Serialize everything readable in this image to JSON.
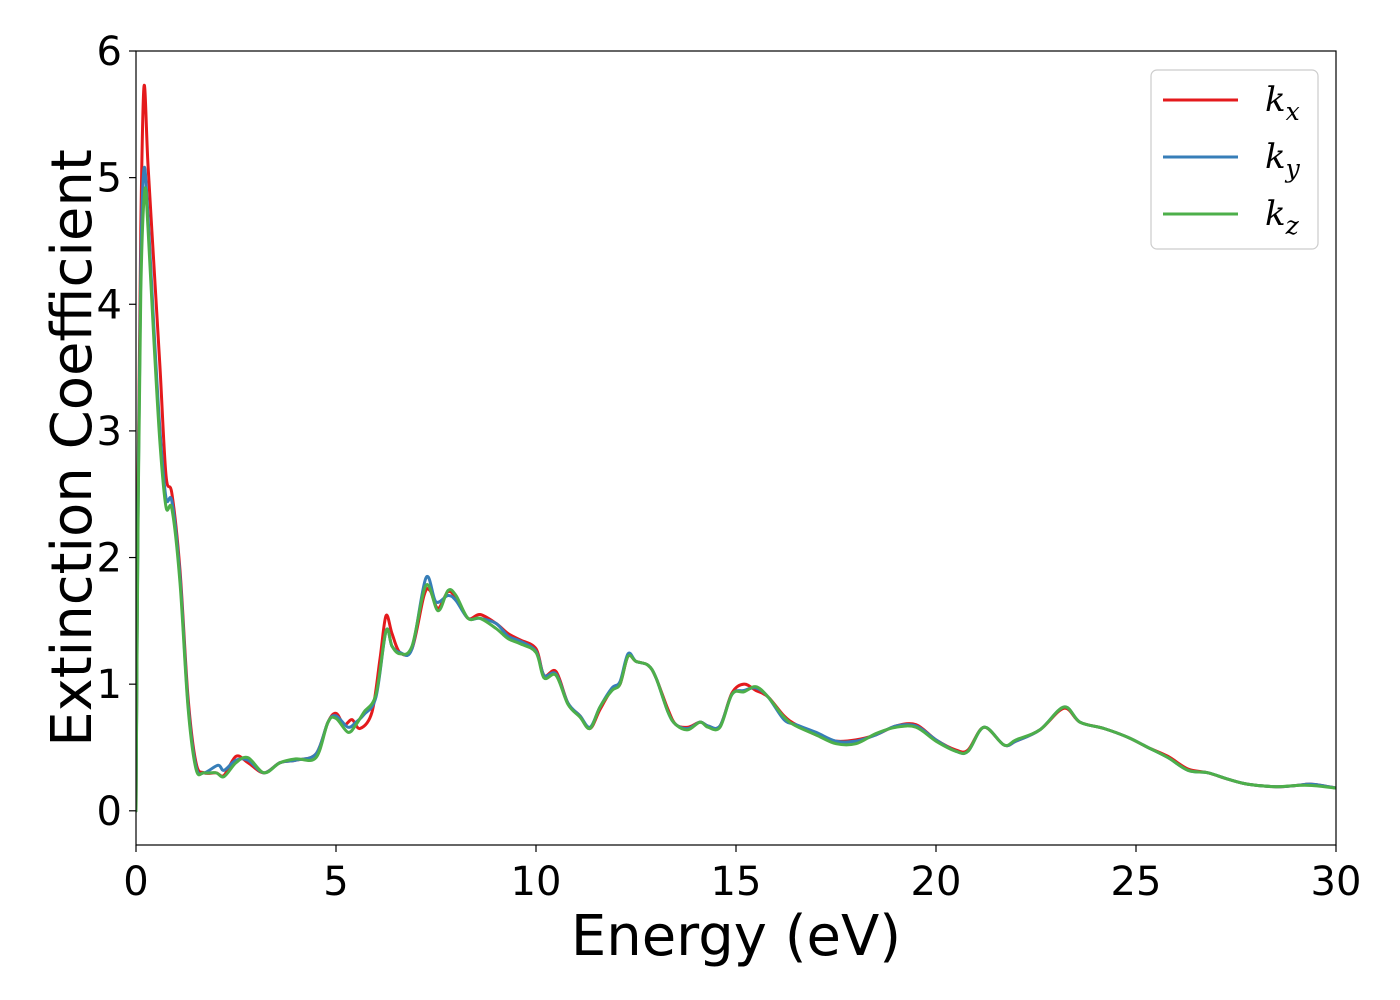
{
  "chart_data": {
    "type": "line",
    "title": "",
    "xlabel": "Energy (eV)",
    "ylabel": "Extinction Coefficient",
    "xlim": [
      0,
      30
    ],
    "ylim": [
      -0.27,
      6.0
    ],
    "xticks": [
      0,
      5,
      10,
      15,
      20,
      25,
      30
    ],
    "yticks": [
      0,
      1,
      2,
      3,
      4,
      5,
      6
    ],
    "grid": false,
    "legend_position": "top-right",
    "series": [
      {
        "name": "k",
        "subscript": "x",
        "color": "#e41a1c",
        "points": [
          [
            0,
            0
          ],
          [
            0.05,
            2.5
          ],
          [
            0.12,
            4.6
          ],
          [
            0.2,
            5.72
          ],
          [
            0.3,
            5.1
          ],
          [
            0.45,
            4.3
          ],
          [
            0.6,
            3.5
          ],
          [
            0.75,
            2.65
          ],
          [
            0.9,
            2.5
          ],
          [
            1.1,
            1.9
          ],
          [
            1.3,
            0.9
          ],
          [
            1.5,
            0.38
          ],
          [
            1.7,
            0.3
          ],
          [
            2.0,
            0.3
          ],
          [
            2.2,
            0.28
          ],
          [
            2.5,
            0.43
          ],
          [
            2.8,
            0.38
          ],
          [
            3.2,
            0.3
          ],
          [
            3.6,
            0.38
          ],
          [
            4.0,
            0.4
          ],
          [
            4.5,
            0.45
          ],
          [
            4.8,
            0.7
          ],
          [
            5.0,
            0.77
          ],
          [
            5.2,
            0.68
          ],
          [
            5.4,
            0.72
          ],
          [
            5.6,
            0.65
          ],
          [
            5.9,
            0.78
          ],
          [
            6.1,
            1.2
          ],
          [
            6.25,
            1.54
          ],
          [
            6.4,
            1.4
          ],
          [
            6.6,
            1.25
          ],
          [
            6.9,
            1.28
          ],
          [
            7.2,
            1.7
          ],
          [
            7.35,
            1.74
          ],
          [
            7.55,
            1.6
          ],
          [
            7.8,
            1.73
          ],
          [
            8.0,
            1.68
          ],
          [
            8.3,
            1.52
          ],
          [
            8.6,
            1.55
          ],
          [
            9.0,
            1.48
          ],
          [
            9.3,
            1.4
          ],
          [
            9.6,
            1.35
          ],
          [
            10.0,
            1.28
          ],
          [
            10.2,
            1.07
          ],
          [
            10.5,
            1.1
          ],
          [
            10.8,
            0.85
          ],
          [
            11.1,
            0.75
          ],
          [
            11.35,
            0.65
          ],
          [
            11.6,
            0.8
          ],
          [
            11.9,
            0.96
          ],
          [
            12.1,
            1.0
          ],
          [
            12.3,
            1.22
          ],
          [
            12.5,
            1.18
          ],
          [
            12.8,
            1.15
          ],
          [
            13.0,
            1.05
          ],
          [
            13.3,
            0.8
          ],
          [
            13.5,
            0.68
          ],
          [
            13.8,
            0.66
          ],
          [
            14.1,
            0.7
          ],
          [
            14.3,
            0.67
          ],
          [
            14.6,
            0.67
          ],
          [
            14.9,
            0.93
          ],
          [
            15.2,
            1.0
          ],
          [
            15.5,
            0.95
          ],
          [
            15.8,
            0.9
          ],
          [
            16.2,
            0.75
          ],
          [
            16.5,
            0.68
          ],
          [
            17.0,
            0.6
          ],
          [
            17.5,
            0.55
          ],
          [
            18.0,
            0.56
          ],
          [
            18.5,
            0.6
          ],
          [
            19.0,
            0.67
          ],
          [
            19.5,
            0.68
          ],
          [
            20.0,
            0.56
          ],
          [
            20.5,
            0.48
          ],
          [
            20.8,
            0.48
          ],
          [
            21.2,
            0.66
          ],
          [
            21.7,
            0.52
          ],
          [
            22.0,
            0.55
          ],
          [
            22.6,
            0.64
          ],
          [
            23.2,
            0.81
          ],
          [
            23.6,
            0.7
          ],
          [
            24.2,
            0.65
          ],
          [
            24.8,
            0.58
          ],
          [
            25.3,
            0.5
          ],
          [
            25.8,
            0.43
          ],
          [
            26.3,
            0.33
          ],
          [
            26.8,
            0.3
          ],
          [
            27.3,
            0.25
          ],
          [
            27.8,
            0.21
          ],
          [
            28.5,
            0.19
          ],
          [
            29.0,
            0.2
          ],
          [
            29.4,
            0.21
          ],
          [
            30.0,
            0.18
          ]
        ]
      },
      {
        "name": "k",
        "subscript": "y",
        "color": "#377eb8",
        "points": [
          [
            0,
            0
          ],
          [
            0.05,
            2.3
          ],
          [
            0.12,
            4.3
          ],
          [
            0.2,
            5.07
          ],
          [
            0.3,
            4.7
          ],
          [
            0.45,
            3.8
          ],
          [
            0.6,
            3.0
          ],
          [
            0.75,
            2.47
          ],
          [
            0.9,
            2.44
          ],
          [
            1.1,
            1.85
          ],
          [
            1.3,
            0.85
          ],
          [
            1.5,
            0.35
          ],
          [
            1.7,
            0.3
          ],
          [
            2.05,
            0.36
          ],
          [
            2.2,
            0.32
          ],
          [
            2.5,
            0.4
          ],
          [
            2.8,
            0.4
          ],
          [
            3.2,
            0.3
          ],
          [
            3.6,
            0.38
          ],
          [
            4.0,
            0.4
          ],
          [
            4.5,
            0.45
          ],
          [
            4.8,
            0.7
          ],
          [
            5.0,
            0.75
          ],
          [
            5.3,
            0.66
          ],
          [
            5.5,
            0.7
          ],
          [
            5.7,
            0.76
          ],
          [
            6.0,
            0.9
          ],
          [
            6.25,
            1.42
          ],
          [
            6.4,
            1.3
          ],
          [
            6.6,
            1.25
          ],
          [
            6.9,
            1.28
          ],
          [
            7.25,
            1.84
          ],
          [
            7.5,
            1.65
          ],
          [
            7.8,
            1.7
          ],
          [
            8.0,
            1.66
          ],
          [
            8.3,
            1.52
          ],
          [
            8.6,
            1.52
          ],
          [
            9.0,
            1.48
          ],
          [
            9.3,
            1.38
          ],
          [
            9.6,
            1.34
          ],
          [
            10.0,
            1.26
          ],
          [
            10.2,
            1.07
          ],
          [
            10.5,
            1.08
          ],
          [
            10.8,
            0.85
          ],
          [
            11.1,
            0.75
          ],
          [
            11.35,
            0.66
          ],
          [
            11.6,
            0.82
          ],
          [
            11.9,
            0.97
          ],
          [
            12.1,
            1.02
          ],
          [
            12.3,
            1.24
          ],
          [
            12.5,
            1.18
          ],
          [
            12.8,
            1.15
          ],
          [
            13.0,
            1.05
          ],
          [
            13.3,
            0.78
          ],
          [
            13.5,
            0.68
          ],
          [
            13.8,
            0.65
          ],
          [
            14.1,
            0.7
          ],
          [
            14.3,
            0.67
          ],
          [
            14.6,
            0.67
          ],
          [
            14.9,
            0.92
          ],
          [
            15.2,
            0.95
          ],
          [
            15.5,
            0.97
          ],
          [
            15.8,
            0.9
          ],
          [
            16.2,
            0.72
          ],
          [
            16.5,
            0.68
          ],
          [
            17.0,
            0.62
          ],
          [
            17.5,
            0.55
          ],
          [
            18.0,
            0.55
          ],
          [
            18.5,
            0.6
          ],
          [
            19.0,
            0.67
          ],
          [
            19.5,
            0.67
          ],
          [
            20.0,
            0.56
          ],
          [
            20.5,
            0.47
          ],
          [
            20.8,
            0.47
          ],
          [
            21.2,
            0.66
          ],
          [
            21.7,
            0.52
          ],
          [
            22.0,
            0.55
          ],
          [
            22.6,
            0.64
          ],
          [
            23.2,
            0.82
          ],
          [
            23.6,
            0.7
          ],
          [
            24.2,
            0.65
          ],
          [
            24.8,
            0.58
          ],
          [
            25.3,
            0.5
          ],
          [
            25.8,
            0.42
          ],
          [
            26.3,
            0.32
          ],
          [
            26.8,
            0.3
          ],
          [
            27.3,
            0.25
          ],
          [
            27.8,
            0.21
          ],
          [
            28.5,
            0.19
          ],
          [
            29.0,
            0.2
          ],
          [
            29.4,
            0.21
          ],
          [
            30.0,
            0.18
          ]
        ]
      },
      {
        "name": "k",
        "subscript": "z",
        "color": "#4daf4a",
        "points": [
          [
            0,
            0
          ],
          [
            0.05,
            2.2
          ],
          [
            0.12,
            4.1
          ],
          [
            0.22,
            4.9
          ],
          [
            0.3,
            4.6
          ],
          [
            0.45,
            3.7
          ],
          [
            0.6,
            2.9
          ],
          [
            0.75,
            2.4
          ],
          [
            0.9,
            2.38
          ],
          [
            1.1,
            1.8
          ],
          [
            1.3,
            0.82
          ],
          [
            1.5,
            0.33
          ],
          [
            1.7,
            0.3
          ],
          [
            2.0,
            0.3
          ],
          [
            2.2,
            0.27
          ],
          [
            2.5,
            0.38
          ],
          [
            2.8,
            0.42
          ],
          [
            3.2,
            0.3
          ],
          [
            3.6,
            0.38
          ],
          [
            4.0,
            0.41
          ],
          [
            4.5,
            0.42
          ],
          [
            4.8,
            0.7
          ],
          [
            5.0,
            0.73
          ],
          [
            5.3,
            0.62
          ],
          [
            5.5,
            0.68
          ],
          [
            5.7,
            0.78
          ],
          [
            6.0,
            0.92
          ],
          [
            6.25,
            1.42
          ],
          [
            6.4,
            1.3
          ],
          [
            6.6,
            1.24
          ],
          [
            6.9,
            1.3
          ],
          [
            7.25,
            1.78
          ],
          [
            7.55,
            1.58
          ],
          [
            7.8,
            1.74
          ],
          [
            8.0,
            1.7
          ],
          [
            8.3,
            1.52
          ],
          [
            8.6,
            1.52
          ],
          [
            9.0,
            1.44
          ],
          [
            9.3,
            1.36
          ],
          [
            9.6,
            1.32
          ],
          [
            10.0,
            1.25
          ],
          [
            10.2,
            1.05
          ],
          [
            10.5,
            1.07
          ],
          [
            10.8,
            0.84
          ],
          [
            11.1,
            0.74
          ],
          [
            11.35,
            0.65
          ],
          [
            11.6,
            0.82
          ],
          [
            11.9,
            0.95
          ],
          [
            12.1,
            1.0
          ],
          [
            12.3,
            1.22
          ],
          [
            12.5,
            1.18
          ],
          [
            12.8,
            1.15
          ],
          [
            13.0,
            1.05
          ],
          [
            13.3,
            0.78
          ],
          [
            13.5,
            0.68
          ],
          [
            13.8,
            0.64
          ],
          [
            14.1,
            0.7
          ],
          [
            14.3,
            0.66
          ],
          [
            14.6,
            0.66
          ],
          [
            14.9,
            0.92
          ],
          [
            15.2,
            0.94
          ],
          [
            15.5,
            0.98
          ],
          [
            15.8,
            0.9
          ],
          [
            16.2,
            0.74
          ],
          [
            16.5,
            0.67
          ],
          [
            17.0,
            0.6
          ],
          [
            17.5,
            0.53
          ],
          [
            18.0,
            0.53
          ],
          [
            18.5,
            0.61
          ],
          [
            19.0,
            0.66
          ],
          [
            19.5,
            0.66
          ],
          [
            20.0,
            0.55
          ],
          [
            20.5,
            0.47
          ],
          [
            20.8,
            0.47
          ],
          [
            21.2,
            0.66
          ],
          [
            21.7,
            0.52
          ],
          [
            22.0,
            0.56
          ],
          [
            22.6,
            0.64
          ],
          [
            23.2,
            0.82
          ],
          [
            23.6,
            0.7
          ],
          [
            24.2,
            0.65
          ],
          [
            24.8,
            0.58
          ],
          [
            25.3,
            0.5
          ],
          [
            25.8,
            0.42
          ],
          [
            26.3,
            0.32
          ],
          [
            26.8,
            0.3
          ],
          [
            27.3,
            0.25
          ],
          [
            27.8,
            0.21
          ],
          [
            28.5,
            0.19
          ],
          [
            29.0,
            0.2
          ],
          [
            29.4,
            0.2
          ],
          [
            30.0,
            0.18
          ]
        ]
      }
    ]
  }
}
